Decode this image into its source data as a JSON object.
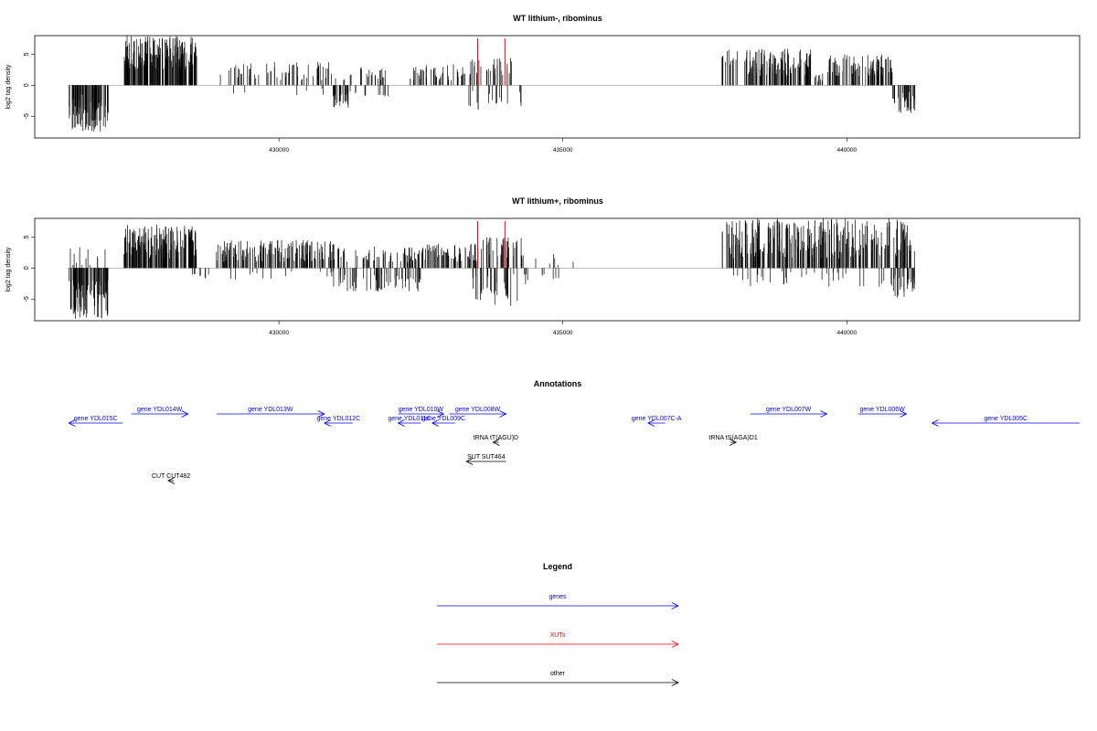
{
  "chart_data": [
    {
      "type": "bar",
      "title": "WT lithium-, ribominus",
      "xlabel": "",
      "ylabel": "log2 tag density",
      "xlim": [
        425700,
        444100
      ],
      "ylim": [
        -8.5,
        8
      ],
      "x_ticks": [
        430000,
        435000,
        440000
      ],
      "x_tick_labels": [
        "430000",
        "435000",
        "440000"
      ],
      "y_ticks": [
        -5,
        0,
        5
      ],
      "y_tick_labels": [
        "-5",
        "0",
        "5"
      ],
      "red_markers": [
        433500,
        433980
      ],
      "segments": [
        {
          "x0": 426300,
          "x1": 427000,
          "ymin": -7.5,
          "ymax": -1.5,
          "n": 90
        },
        {
          "x0": 427270,
          "x1": 428560,
          "ymin": 2.5,
          "ymax": 8,
          "n": 170
        },
        {
          "x0": 428950,
          "x1": 430900,
          "ymin": 0.8,
          "ymax": 3.8,
          "n": 60
        },
        {
          "x0": 429000,
          "x1": 430900,
          "ymin": -1.8,
          "ymax": -0.5,
          "n": 6
        },
        {
          "x0": 430920,
          "x1": 431900,
          "ymin": 0.8,
          "ymax": 3,
          "n": 25
        },
        {
          "x0": 430950,
          "x1": 431400,
          "ymin": -3.8,
          "ymax": -0.8,
          "n": 28
        },
        {
          "x0": 431500,
          "x1": 432000,
          "ymin": -1.5,
          "ymax": 1.8,
          "n": 8
        },
        {
          "x0": 432300,
          "x1": 433300,
          "ymin": 0.8,
          "ymax": 3.5,
          "n": 45
        },
        {
          "x0": 433350,
          "x1": 434100,
          "ymin": 1.5,
          "ymax": 4.5,
          "n": 30
        },
        {
          "x0": 433300,
          "x1": 434300,
          "ymin": -4,
          "ymax": -0.8,
          "n": 18
        },
        {
          "x0": 437800,
          "x1": 438100,
          "ymin": 2.5,
          "ymax": 6,
          "n": 14
        },
        {
          "x0": 438200,
          "x1": 439400,
          "ymin": 1.5,
          "ymax": 6,
          "n": 110
        },
        {
          "x0": 439400,
          "x1": 439600,
          "ymin": 0.5,
          "ymax": 2,
          "n": 10
        },
        {
          "x0": 439650,
          "x1": 440800,
          "ymin": 1.5,
          "ymax": 5,
          "n": 90
        },
        {
          "x0": 440800,
          "x1": 441200,
          "ymin": -4.8,
          "ymax": -1,
          "n": 30
        }
      ]
    },
    {
      "type": "bar",
      "title": "WT lithium+, ribominus",
      "xlabel": "",
      "ylabel": "log2 tag density",
      "xlim": [
        425700,
        444100
      ],
      "ylim": [
        -8.5,
        8
      ],
      "x_ticks": [
        430000,
        435000,
        440000
      ],
      "x_tick_labels": [
        "430000",
        "435000",
        "440000"
      ],
      "y_ticks": [
        -5,
        0,
        5
      ],
      "y_tick_labels": [
        "-5",
        "0",
        "5"
      ],
      "red_markers": [
        433500,
        433980
      ],
      "segments": [
        {
          "x0": 426300,
          "x1": 427000,
          "ymin": -8.2,
          "ymax": -2,
          "n": 90
        },
        {
          "x0": 426300,
          "x1": 427000,
          "ymin": 0.5,
          "ymax": 3.5,
          "n": 12
        },
        {
          "x0": 427270,
          "x1": 428560,
          "ymin": 1.5,
          "ymax": 7,
          "n": 160
        },
        {
          "x0": 428400,
          "x1": 428800,
          "ymin": -3,
          "ymax": -0.8,
          "n": 8
        },
        {
          "x0": 428900,
          "x1": 431000,
          "ymin": 1,
          "ymax": 4.5,
          "n": 150
        },
        {
          "x0": 429000,
          "x1": 431000,
          "ymin": -2,
          "ymax": -0.5,
          "n": 14
        },
        {
          "x0": 430950,
          "x1": 432500,
          "ymin": -3.8,
          "ymax": -0.8,
          "n": 60
        },
        {
          "x0": 431000,
          "x1": 432500,
          "ymin": 0.8,
          "ymax": 3.5,
          "n": 60
        },
        {
          "x0": 432500,
          "x1": 433500,
          "ymin": 1,
          "ymax": 4,
          "n": 70
        },
        {
          "x0": 433500,
          "x1": 434300,
          "ymin": 1.5,
          "ymax": 5,
          "n": 40
        },
        {
          "x0": 433400,
          "x1": 434400,
          "ymin": -6.5,
          "ymax": -1,
          "n": 35
        },
        {
          "x0": 434500,
          "x1": 435200,
          "ymin": 0.5,
          "ymax": 2.5,
          "n": 6
        },
        {
          "x0": 434600,
          "x1": 435000,
          "ymin": -1.8,
          "ymax": -0.5,
          "n": 6
        },
        {
          "x0": 437800,
          "x1": 441200,
          "ymin": 1.5,
          "ymax": 8,
          "n": 260
        },
        {
          "x0": 438000,
          "x1": 441200,
          "ymin": -3,
          "ymax": -0.5,
          "n": 40
        },
        {
          "x0": 440800,
          "x1": 441200,
          "ymin": -4.8,
          "ymax": -1,
          "n": 25
        }
      ]
    }
  ],
  "annotations": {
    "title": "Annotations",
    "items": [
      {
        "label": "gene YDL015C",
        "kind": "gene",
        "x0": 426300,
        "x1": 427250,
        "row": 1,
        "dir": "left"
      },
      {
        "label": "gene YDL014W",
        "kind": "gene",
        "x0": 427400,
        "x1": 428400,
        "row": 0,
        "dir": "right"
      },
      {
        "label": "gene YDL013W",
        "kind": "gene",
        "x0": 428900,
        "x1": 430800,
        "row": 0,
        "dir": "right"
      },
      {
        "label": "gene YDL012C",
        "kind": "gene",
        "x0": 430800,
        "x1": 431300,
        "row": 1,
        "dir": "left"
      },
      {
        "label": "gene YDL010W",
        "kind": "gene",
        "x0": 432100,
        "x1": 432900,
        "row": 0,
        "dir": "right"
      },
      {
        "label": "gene YDL011C",
        "kind": "gene",
        "x0": 432100,
        "x1": 432500,
        "row": 1,
        "dir": "left"
      },
      {
        "label": "gene YDL009C",
        "kind": "gene",
        "x0": 432700,
        "x1": 433100,
        "row": 1,
        "dir": "left"
      },
      {
        "label": "gene YDL008W",
        "kind": "gene",
        "x0": 433000,
        "x1": 434000,
        "row": 0,
        "dir": "right"
      },
      {
        "label": "gene YDL007C-A",
        "kind": "gene",
        "x0": 436500,
        "x1": 436800,
        "row": 1,
        "dir": "left"
      },
      {
        "label": "gene YDL007W",
        "kind": "gene",
        "x0": 438300,
        "x1": 439650,
        "row": 0,
        "dir": "right"
      },
      {
        "label": "gene YDL006W",
        "kind": "gene",
        "x0": 440200,
        "x1": 441050,
        "row": 0,
        "dir": "right"
      },
      {
        "label": "gene YDL005C",
        "kind": "gene",
        "x0": 441500,
        "x1": 444100,
        "row": 1,
        "dir": "left"
      },
      {
        "label": "tRNA tT(AGU)D",
        "kind": "other",
        "x0": 433770,
        "x1": 433870,
        "row": 2,
        "dir": "left"
      },
      {
        "label": "tRNA tS(AGA)D1",
        "kind": "other",
        "x0": 437950,
        "x1": 438050,
        "row": 2,
        "dir": "right"
      },
      {
        "label": "SUT SUT464",
        "kind": "other",
        "x0": 433300,
        "x1": 434000,
        "row": 3,
        "dir": "left"
      },
      {
        "label": "CUT CUT482",
        "kind": "other",
        "x0": 428050,
        "x1": 428150,
        "row": 4,
        "dir": "left"
      }
    ]
  },
  "legend": {
    "title": "Legend",
    "items": [
      {
        "label": "genes",
        "color": "#0000ff"
      },
      {
        "label": "XUTs",
        "color": "#ff0000"
      },
      {
        "label": "other",
        "color": "#000000"
      }
    ]
  },
  "colors": {
    "gene": "#0000ff",
    "xut": "#ff0000",
    "other": "#000000",
    "marker": "#ff0000"
  }
}
